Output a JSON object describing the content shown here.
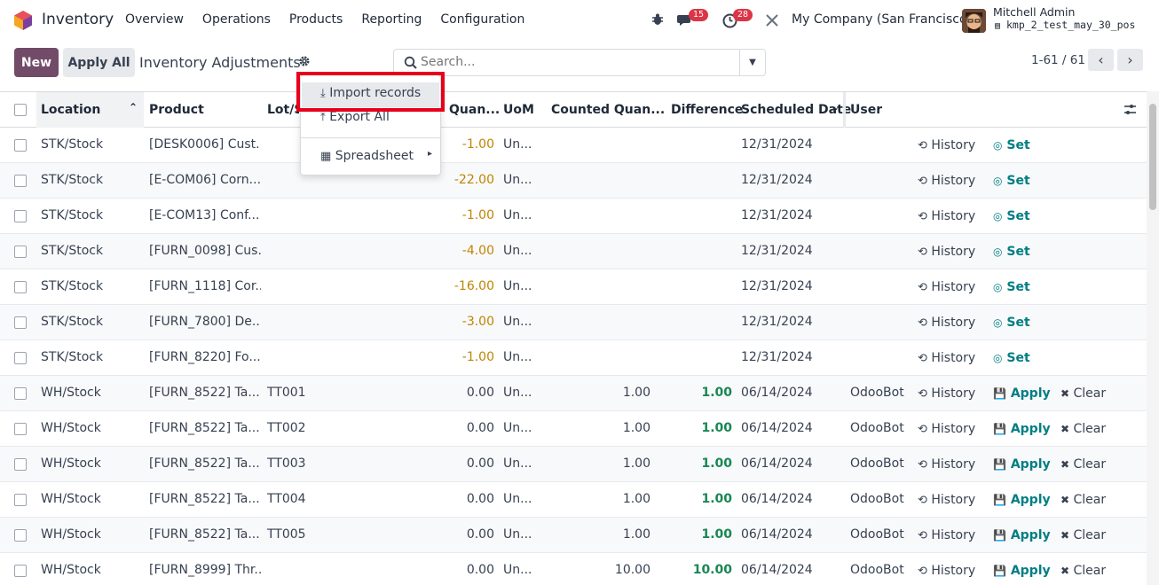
{
  "navbar": {
    "app_name": "Inventory",
    "menu": [
      "Overview",
      "Operations",
      "Products",
      "Reporting",
      "Configuration"
    ],
    "messages_count": "15",
    "activities_count": "28",
    "company": "My Company (San Francisco)",
    "user_name": "Mitchell Admin",
    "db_name": "kmp_2_test_may_30_pos"
  },
  "control": {
    "new_label": "New",
    "apply_all_label": "Apply All",
    "title": "Inventory Adjustments",
    "search_placeholder": "Search...",
    "pager": "1-61 / 61"
  },
  "dropdown": {
    "import_label": "Import records",
    "export_label": "Export All",
    "spreadsheet_label": "Spreadsheet"
  },
  "columns": {
    "location": "Location",
    "product": "Product",
    "lot": "Lot/S",
    "quantity": "Quan...",
    "uom": "UoM",
    "counted": "Counted Quan...",
    "difference": "Difference",
    "scheduled": "Scheduled Date",
    "user": "User"
  },
  "actions": {
    "history": "History",
    "set": "Set",
    "apply": "Apply",
    "clear": "Clear"
  },
  "rows": [
    {
      "location": "STK/Stock",
      "product": "[DESK0006] Cust...",
      "lot": "",
      "quantity": "-1.00",
      "uom": "Un...",
      "counted": "",
      "difference": "",
      "date": "12/31/2024",
      "user": "",
      "kind": "set"
    },
    {
      "location": "STK/Stock",
      "product": "[E-COM06] Corn...",
      "lot": "",
      "quantity": "-22.00",
      "uom": "Un...",
      "counted": "",
      "difference": "",
      "date": "12/31/2024",
      "user": "",
      "kind": "set"
    },
    {
      "location": "STK/Stock",
      "product": "[E-COM13] Conf...",
      "lot": "",
      "quantity": "-1.00",
      "uom": "Un...",
      "counted": "",
      "difference": "",
      "date": "12/31/2024",
      "user": "",
      "kind": "set"
    },
    {
      "location": "STK/Stock",
      "product": "[FURN_0098] Cus...",
      "lot": "",
      "quantity": "-4.00",
      "uom": "Un...",
      "counted": "",
      "difference": "",
      "date": "12/31/2024",
      "user": "",
      "kind": "set"
    },
    {
      "location": "STK/Stock",
      "product": "[FURN_1118] Cor...",
      "lot": "",
      "quantity": "-16.00",
      "uom": "Un...",
      "counted": "",
      "difference": "",
      "date": "12/31/2024",
      "user": "",
      "kind": "set"
    },
    {
      "location": "STK/Stock",
      "product": "[FURN_7800] De...",
      "lot": "",
      "quantity": "-3.00",
      "uom": "Un...",
      "counted": "",
      "difference": "",
      "date": "12/31/2024",
      "user": "",
      "kind": "set"
    },
    {
      "location": "STK/Stock",
      "product": "[FURN_8220] Fo...",
      "lot": "",
      "quantity": "-1.00",
      "uom": "Un...",
      "counted": "",
      "difference": "",
      "date": "12/31/2024",
      "user": "",
      "kind": "set"
    },
    {
      "location": "WH/Stock",
      "product": "[FURN_8522] Ta...",
      "lot": "TT001",
      "quantity": "0.00",
      "uom": "Un...",
      "counted": "1.00",
      "difference": "1.00",
      "date": "06/14/2024",
      "user": "OdooBot",
      "kind": "apply"
    },
    {
      "location": "WH/Stock",
      "product": "[FURN_8522] Ta...",
      "lot": "TT002",
      "quantity": "0.00",
      "uom": "Un...",
      "counted": "1.00",
      "difference": "1.00",
      "date": "06/14/2024",
      "user": "OdooBot",
      "kind": "apply"
    },
    {
      "location": "WH/Stock",
      "product": "[FURN_8522] Ta...",
      "lot": "TT003",
      "quantity": "0.00",
      "uom": "Un...",
      "counted": "1.00",
      "difference": "1.00",
      "date": "06/14/2024",
      "user": "OdooBot",
      "kind": "apply"
    },
    {
      "location": "WH/Stock",
      "product": "[FURN_8522] Ta...",
      "lot": "TT004",
      "quantity": "0.00",
      "uom": "Un...",
      "counted": "1.00",
      "difference": "1.00",
      "date": "06/14/2024",
      "user": "OdooBot",
      "kind": "apply"
    },
    {
      "location": "WH/Stock",
      "product": "[FURN_8522] Ta...",
      "lot": "TT005",
      "quantity": "0.00",
      "uom": "Un...",
      "counted": "1.00",
      "difference": "1.00",
      "date": "06/14/2024",
      "user": "OdooBot",
      "kind": "apply"
    },
    {
      "location": "WH/Stock",
      "product": "[FURN_8999] Thr...",
      "lot": "",
      "quantity": "0.00",
      "uom": "Un...",
      "counted": "10.00",
      "difference": "10.00",
      "date": "06/14/2024",
      "user": "OdooBot",
      "kind": "apply"
    }
  ],
  "colors": {
    "brand": "#714b67",
    "teal": "#017e84",
    "negative": "#c08403",
    "positive": "#198754",
    "highlight_box": "#e8001b"
  }
}
